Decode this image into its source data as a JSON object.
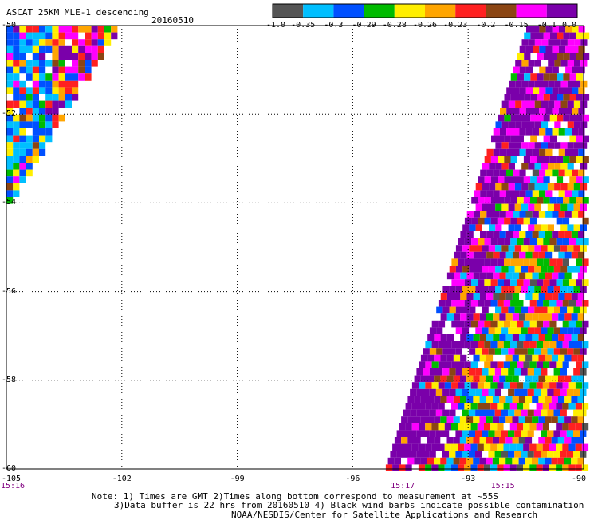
{
  "header": {
    "title": "ASCAT 25KM MLE-1 descending",
    "date": "20160510"
  },
  "colorbar": {
    "colors": [
      "#555555",
      "#00bfff",
      "#0050ff",
      "#00bb00",
      "#ffee00",
      "#ffa500",
      "#ff2020",
      "#8b4513",
      "#ff00ff",
      "#7a00aa"
    ],
    "labels": [
      "-1.0",
      "-0.35",
      "-0.3",
      "-0.29",
      "-0.28",
      "-0.26",
      "-0.23",
      "-0.2",
      "-0.15",
      "-0.1",
      "0.0"
    ]
  },
  "map": {
    "lon_range": [
      -105,
      -90
    ],
    "lat_range": [
      -60,
      -50
    ],
    "lon_ticks": [
      "-105",
      "-102",
      "-99",
      "-96",
      "-93",
      "-90"
    ],
    "lat_ticks": [
      "-50",
      "-52",
      "-54",
      "-56",
      "-58",
      "-60"
    ],
    "time_labels": [
      {
        "text": "15:16",
        "lon": -105
      },
      {
        "text": "15:17",
        "lon": -94.7
      },
      {
        "text": "15:15",
        "lon": -92.1
      }
    ],
    "grid": "dotted"
  },
  "footer": {
    "note1": "Note: 1) Times are GMT 2)Times along bottom correspond to measurement at ~55S",
    "note2": "3)Data buffer is 22 hrs from 20160510 4) Black wind barbs indicate possible contamination",
    "note3": "NOAA/NESDIS/Center for Satellite Applications and Research"
  }
}
